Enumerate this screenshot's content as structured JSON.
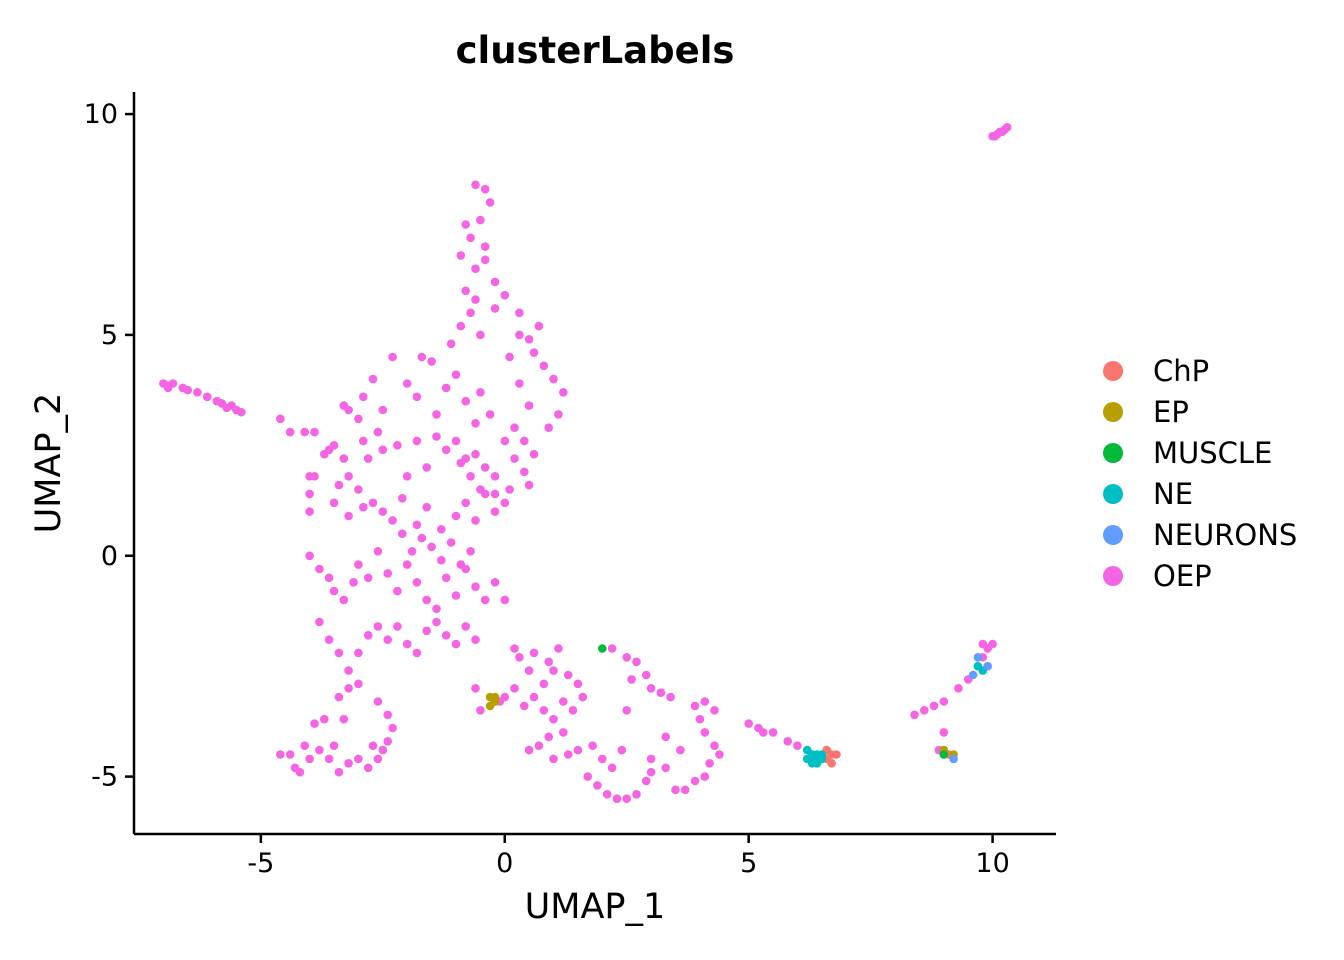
{
  "chart_data": {
    "type": "scatter",
    "title": "clusterLabels",
    "xlabel": "UMAP_1",
    "ylabel": "UMAP_2",
    "xlim": [
      -7.6,
      11.3
    ],
    "ylim": [
      -6.3,
      10.5
    ],
    "xticks": [
      -5,
      0,
      5,
      10
    ],
    "yticks": [
      -5,
      0,
      5,
      10
    ],
    "xtick_labels": [
      "-5",
      "0",
      "5",
      "10"
    ],
    "ytick_labels": [
      "-5",
      "0",
      "5",
      "10"
    ],
    "grid": false,
    "legend_position": "right",
    "series": [
      {
        "name": "ChP",
        "color": "#F8766D",
        "points": [
          [
            6.6,
            -4.4
          ],
          [
            6.7,
            -4.5
          ],
          [
            6.7,
            -4.7
          ],
          [
            6.8,
            -4.5
          ],
          [
            6.6,
            -4.6
          ],
          [
            9.1,
            -4.5
          ]
        ]
      },
      {
        "name": "EP",
        "color": "#B79F00",
        "points": [
          [
            -0.3,
            -3.2
          ],
          [
            -0.2,
            -3.2
          ],
          [
            -0.3,
            -3.4
          ],
          [
            -0.2,
            -3.3
          ],
          [
            9.2,
            -4.5
          ],
          [
            9.0,
            -4.4
          ]
        ]
      },
      {
        "name": "MUSCLE",
        "color": "#00BA38",
        "points": [
          [
            2.0,
            -2.1
          ],
          [
            9.0,
            -4.5
          ]
        ]
      },
      {
        "name": "NE",
        "color": "#00BFC4",
        "points": [
          [
            6.2,
            -4.4
          ],
          [
            6.2,
            -4.6
          ],
          [
            6.3,
            -4.5
          ],
          [
            6.3,
            -4.6
          ],
          [
            6.4,
            -4.5
          ],
          [
            6.4,
            -4.7
          ],
          [
            6.5,
            -4.6
          ],
          [
            6.5,
            -4.5
          ],
          [
            6.3,
            -4.7
          ],
          [
            6.4,
            -4.6
          ],
          [
            9.7,
            -2.5
          ],
          [
            9.8,
            -2.6
          ]
        ]
      },
      {
        "name": "NEURONS",
        "color": "#619CFF",
        "points": [
          [
            9.2,
            -4.6
          ],
          [
            9.7,
            -2.3
          ],
          [
            9.6,
            -2.7
          ],
          [
            9.9,
            -2.5
          ]
        ]
      },
      {
        "name": "OEP",
        "color": "#F564E3",
        "points": [
          [
            10.0,
            9.5
          ],
          [
            10.1,
            9.55
          ],
          [
            10.2,
            9.6
          ],
          [
            10.25,
            9.65
          ],
          [
            10.3,
            9.7
          ],
          [
            10.05,
            9.5
          ],
          [
            10.15,
            9.6
          ],
          [
            -7.0,
            3.9
          ],
          [
            -6.9,
            3.8
          ],
          [
            -6.8,
            3.9
          ],
          [
            -6.6,
            3.8
          ],
          [
            -6.5,
            3.75
          ],
          [
            -6.3,
            3.7
          ],
          [
            -6.1,
            3.6
          ],
          [
            -5.9,
            3.5
          ],
          [
            -5.8,
            3.45
          ],
          [
            -5.6,
            3.4
          ],
          [
            -5.5,
            3.3
          ],
          [
            -5.4,
            3.25
          ],
          [
            -6.9,
            3.85
          ],
          [
            -5.7,
            3.35
          ],
          [
            -4.6,
            3.1
          ],
          [
            -4.4,
            2.8
          ],
          [
            -4.1,
            2.8
          ],
          [
            -3.9,
            2.8
          ],
          [
            -4.0,
            1.8
          ],
          [
            -3.9,
            1.8
          ],
          [
            -4.0,
            1.4
          ],
          [
            -4.0,
            1.0
          ],
          [
            -3.7,
            2.3
          ],
          [
            -3.6,
            2.4
          ],
          [
            -3.5,
            2.5
          ],
          [
            -3.3,
            2.2
          ],
          [
            -3.2,
            1.8
          ],
          [
            -3.4,
            1.6
          ],
          [
            -3.0,
            1.5
          ],
          [
            -3.2,
            3.3
          ],
          [
            -3.3,
            3.4
          ],
          [
            -3.0,
            3.1
          ],
          [
            -2.9,
            2.6
          ],
          [
            -2.8,
            2.2
          ],
          [
            -2.6,
            2.8
          ],
          [
            -2.9,
            3.6
          ],
          [
            -2.7,
            4.0
          ],
          [
            -2.5,
            3.3
          ],
          [
            -2.3,
            4.5
          ],
          [
            -2.0,
            3.9
          ],
          [
            -1.8,
            3.6
          ],
          [
            -1.7,
            4.5
          ],
          [
            -1.5,
            4.4
          ],
          [
            -1.4,
            3.2
          ],
          [
            -1.2,
            3.8
          ],
          [
            -1.0,
            4.1
          ],
          [
            -0.8,
            3.5
          ],
          [
            -0.6,
            3.0
          ],
          [
            -0.5,
            3.7
          ],
          [
            -0.3,
            3.2
          ],
          [
            -1.1,
            4.8
          ],
          [
            -0.9,
            5.2
          ],
          [
            -0.7,
            5.5
          ],
          [
            -0.5,
            5.0
          ],
          [
            -2.5,
            2.4
          ],
          [
            -2.2,
            2.5
          ],
          [
            -2.0,
            1.8
          ],
          [
            -1.8,
            2.6
          ],
          [
            -1.6,
            2.0
          ],
          [
            -1.4,
            2.7
          ],
          [
            -1.2,
            2.4
          ],
          [
            -1.0,
            2.6
          ],
          [
            -0.8,
            2.2
          ],
          [
            -0.6,
            2.3
          ],
          [
            -0.4,
            2.0
          ],
          [
            -0.2,
            1.8
          ],
          [
            -3.5,
            1.2
          ],
          [
            -3.2,
            0.9
          ],
          [
            -2.9,
            1.1
          ],
          [
            -2.7,
            1.2
          ],
          [
            -2.5,
            1.0
          ],
          [
            -2.3,
            0.8
          ],
          [
            -2.1,
            1.3
          ],
          [
            -1.8,
            0.7
          ],
          [
            -1.6,
            1.1
          ],
          [
            -1.3,
            0.6
          ],
          [
            -1.0,
            0.9
          ],
          [
            -0.8,
            1.2
          ],
          [
            -0.6,
            0.8
          ],
          [
            -0.4,
            1.4
          ],
          [
            -0.2,
            1.0
          ],
          [
            0.0,
            1.2
          ],
          [
            -4.0,
            0.0
          ],
          [
            -3.8,
            -0.3
          ],
          [
            -3.6,
            -0.5
          ],
          [
            -3.5,
            -0.8
          ],
          [
            -3.3,
            -1.0
          ],
          [
            -3.1,
            -0.6
          ],
          [
            -3.0,
            -0.2
          ],
          [
            -2.8,
            -0.5
          ],
          [
            -2.6,
            0.1
          ],
          [
            -2.4,
            -0.4
          ],
          [
            -2.2,
            -0.8
          ],
          [
            -2.0,
            -0.2
          ],
          [
            -1.8,
            -0.6
          ],
          [
            -1.6,
            -1.0
          ],
          [
            -1.4,
            -1.2
          ],
          [
            -1.2,
            -0.5
          ],
          [
            -1.0,
            -0.9
          ],
          [
            -0.8,
            -0.3
          ],
          [
            -0.6,
            -0.7
          ],
          [
            -0.4,
            -1.0
          ],
          [
            -0.2,
            -0.6
          ],
          [
            0.0,
            -1.0
          ],
          [
            -3.8,
            -1.5
          ],
          [
            -3.6,
            -1.9
          ],
          [
            -3.4,
            -2.2
          ],
          [
            -3.2,
            -2.6
          ],
          [
            -3.0,
            -2.2
          ],
          [
            -2.8,
            -1.8
          ],
          [
            -2.6,
            -1.6
          ],
          [
            -2.4,
            -1.9
          ],
          [
            -2.2,
            -1.6
          ],
          [
            -2.0,
            -2.0
          ],
          [
            -1.8,
            -2.2
          ],
          [
            -1.6,
            -1.7
          ],
          [
            -1.4,
            -1.5
          ],
          [
            -1.2,
            -1.8
          ],
          [
            -1.0,
            -2.0
          ],
          [
            -0.8,
            -1.6
          ],
          [
            -0.6,
            -1.9
          ],
          [
            -3.2,
            -3.0
          ],
          [
            -3.4,
            -3.2
          ],
          [
            -3.0,
            -2.9
          ],
          [
            -2.6,
            -3.3
          ],
          [
            -2.4,
            -3.6
          ],
          [
            -2.3,
            -3.9
          ],
          [
            -2.4,
            -4.2
          ],
          [
            -2.5,
            -4.4
          ],
          [
            -4.6,
            -4.5
          ],
          [
            -4.4,
            -4.5
          ],
          [
            -4.3,
            -4.8
          ],
          [
            -4.2,
            -4.9
          ],
          [
            -4.0,
            -4.6
          ],
          [
            -3.8,
            -4.4
          ],
          [
            -3.6,
            -4.6
          ],
          [
            -3.4,
            -4.9
          ],
          [
            -3.2,
            -4.7
          ],
          [
            -3.0,
            -4.6
          ],
          [
            -2.8,
            -4.8
          ],
          [
            -2.6,
            -4.6
          ],
          [
            -2.7,
            -4.3
          ],
          [
            -3.9,
            -3.8
          ],
          [
            -3.7,
            -3.7
          ],
          [
            -3.3,
            -3.7
          ],
          [
            -4.1,
            -4.3
          ],
          [
            -3.5,
            -4.3
          ],
          [
            -0.6,
            -3.0
          ],
          [
            -0.5,
            -3.5
          ],
          [
            -0.1,
            -3.3
          ],
          [
            0.0,
            -3.2
          ],
          [
            0.2,
            -3.0
          ],
          [
            0.4,
            -3.4
          ],
          [
            0.6,
            -3.2
          ],
          [
            0.8,
            -2.9
          ],
          [
            0.5,
            -2.6
          ],
          [
            0.3,
            -2.3
          ],
          [
            0.2,
            -2.1
          ],
          [
            0.6,
            -2.2
          ],
          [
            0.9,
            -2.4
          ],
          [
            1.1,
            -2.1
          ],
          [
            1.0,
            -2.6
          ],
          [
            1.3,
            -2.7
          ],
          [
            1.5,
            -2.9
          ],
          [
            1.6,
            -3.2
          ],
          [
            1.4,
            -3.5
          ],
          [
            1.2,
            -3.3
          ],
          [
            1.0,
            -3.7
          ],
          [
            0.8,
            -3.5
          ],
          [
            0.5,
            -4.4
          ],
          [
            0.7,
            -4.3
          ],
          [
            0.9,
            -4.1
          ],
          [
            1.2,
            -4.0
          ],
          [
            1.3,
            -4.5
          ],
          [
            1.0,
            -4.6
          ],
          [
            1.5,
            -4.4
          ],
          [
            1.8,
            -4.3
          ],
          [
            2.0,
            -4.6
          ],
          [
            2.2,
            -4.8
          ],
          [
            1.7,
            -5.0
          ],
          [
            1.9,
            -5.2
          ],
          [
            2.1,
            -5.4
          ],
          [
            2.3,
            -5.5
          ],
          [
            2.5,
            -5.5
          ],
          [
            2.7,
            -5.4
          ],
          [
            2.9,
            -5.1
          ],
          [
            3.0,
            -4.9
          ],
          [
            3.3,
            -4.8
          ],
          [
            3.5,
            -5.3
          ],
          [
            3.7,
            -5.3
          ],
          [
            3.9,
            -5.1
          ],
          [
            4.1,
            -5.0
          ],
          [
            4.2,
            -4.7
          ],
          [
            4.4,
            -4.5
          ],
          [
            4.3,
            -4.3
          ],
          [
            4.1,
            -4.0
          ],
          [
            4.0,
            -3.7
          ],
          [
            3.9,
            -3.4
          ],
          [
            4.1,
            -3.3
          ],
          [
            4.3,
            -3.5
          ],
          [
            2.2,
            -2.1
          ],
          [
            2.5,
            -2.3
          ],
          [
            2.7,
            -2.4
          ],
          [
            2.9,
            -2.7
          ],
          [
            2.6,
            -2.8
          ],
          [
            3.0,
            -3.0
          ],
          [
            3.2,
            -3.1
          ],
          [
            3.4,
            -3.2
          ],
          [
            3.6,
            -4.4
          ],
          [
            3.3,
            -4.1
          ],
          [
            3.0,
            -4.6
          ],
          [
            2.5,
            -3.5
          ],
          [
            2.4,
            -4.4
          ],
          [
            5.0,
            -3.8
          ],
          [
            5.2,
            -3.9
          ],
          [
            5.3,
            -4.0
          ],
          [
            5.5,
            -4.0
          ],
          [
            5.8,
            -4.2
          ],
          [
            6.0,
            -4.3
          ],
          [
            6.3,
            -4.5
          ],
          [
            9.8,
            -2.0
          ],
          [
            9.9,
            -2.1
          ],
          [
            10.0,
            -2.0
          ],
          [
            9.8,
            -2.3
          ],
          [
            9.5,
            -2.8
          ],
          [
            9.3,
            -3.0
          ],
          [
            9.0,
            -3.3
          ],
          [
            8.8,
            -3.4
          ],
          [
            8.6,
            -3.5
          ],
          [
            8.4,
            -3.6
          ],
          [
            9.0,
            -4.0
          ],
          [
            8.9,
            -4.4
          ],
          [
            -0.6,
            8.4
          ],
          [
            -0.4,
            8.3
          ],
          [
            -0.3,
            8.0
          ],
          [
            -0.5,
            7.6
          ],
          [
            -0.7,
            7.2
          ],
          [
            -0.8,
            7.5
          ],
          [
            -0.4,
            6.7
          ],
          [
            -0.6,
            6.5
          ],
          [
            -0.8,
            6.0
          ],
          [
            -0.6,
            5.8
          ],
          [
            -0.2,
            5.6
          ],
          [
            -0.4,
            7.0
          ],
          [
            -0.9,
            6.8
          ],
          [
            -0.2,
            6.2
          ],
          [
            0.0,
            5.9
          ],
          [
            0.3,
            5.5
          ],
          [
            0.5,
            4.9
          ],
          [
            0.6,
            4.6
          ],
          [
            0.8,
            4.3
          ],
          [
            1.0,
            4.0
          ],
          [
            1.2,
            3.7
          ],
          [
            1.1,
            3.2
          ],
          [
            0.9,
            2.9
          ],
          [
            0.5,
            3.4
          ],
          [
            0.3,
            3.9
          ],
          [
            0.1,
            4.5
          ],
          [
            0.7,
            5.2
          ],
          [
            0.3,
            5.0
          ],
          [
            0.0,
            2.6
          ],
          [
            0.2,
            2.2
          ],
          [
            0.4,
            1.9
          ],
          [
            0.6,
            2.3
          ],
          [
            0.4,
            2.6
          ],
          [
            0.2,
            2.9
          ],
          [
            0.5,
            1.6
          ],
          [
            0.1,
            1.5
          ],
          [
            -0.2,
            1.4
          ],
          [
            -0.5,
            1.5
          ],
          [
            -0.7,
            1.8
          ],
          [
            -0.9,
            2.1
          ],
          [
            -1.5,
            0.2
          ],
          [
            -1.3,
            -0.1
          ],
          [
            -1.1,
            0.3
          ],
          [
            -0.9,
            -0.2
          ],
          [
            -0.7,
            0.1
          ],
          [
            -1.7,
            0.4
          ],
          [
            -2.1,
            0.5
          ],
          [
            -1.9,
            0.1
          ]
        ]
      }
    ]
  }
}
